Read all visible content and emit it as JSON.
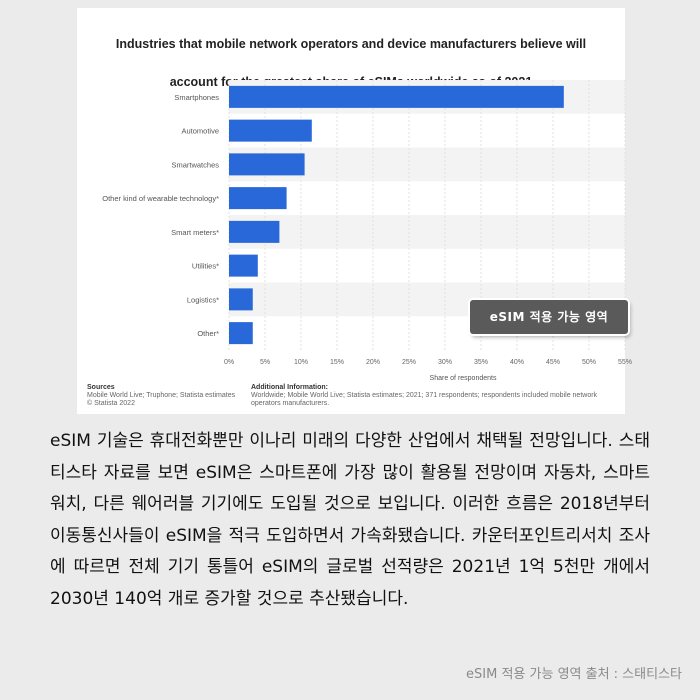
{
  "chart_data": {
    "type": "bar",
    "orientation": "horizontal",
    "title": "Industries that mobile network operators and device manufacturers believe will account for the greatest share of eSIMs worldwide as of 2021",
    "title_lines": [
      "Industries that mobile network operators and device manufacturers believe will",
      "account for the greatest share of eSIMs worldwide as of 2021"
    ],
    "categories": [
      "Smartphones",
      "Automotive",
      "Smartwatches",
      "Other kind of wearable technology*",
      "Smart meters*",
      "Utilities*",
      "Logistics*",
      "Other*"
    ],
    "values": [
      46.5,
      11.5,
      10.5,
      8,
      7,
      4,
      3.3,
      3.3
    ],
    "xlabel": "Share of respondents",
    "ylabel": "",
    "xlim": [
      0,
      55
    ],
    "xticks": [
      "0%",
      "5%",
      "10%",
      "15%",
      "20%",
      "25%",
      "30%",
      "35%",
      "40%",
      "45%",
      "50%",
      "55%"
    ],
    "grid": true,
    "bar_color": "#2968d9"
  },
  "footer": {
    "sources_title": "Sources",
    "sources_text": "Mobile World Live; Truphone; Statista estimates",
    "copyright": "© Statista 2022",
    "info_title": "Additional Information:",
    "info_text": "Worldwide; Mobile World Live; Statista estimates; 2021; 371 respondents; respondents included mobile network operators manufacturers."
  },
  "badge": "eSIM 적용 가능 영역",
  "body_text": "eSIM 기술은 휴대전화뿐만 이나리 미래의 다양한 산업에서 채택될 전망입니다. 스태티스타 자료를 보면 eSIM은 스마트폰에 가장 많이 활용될 전망이며 자동차, 스마트워치, 다른 웨어러블 기기에도 도입될 것으로 보입니다. 이러한 흐름은 2018년부터 이동통신사들이 eSIM을 적극 도입하면서 가속화됐습니다. 카운터포인트리서치 조사에 따르면 전체 기기 통틀어 eSIM의 글로벌 선적량은 2021년 1억 5천만 개에서 2030년 140억 개로 증가할 것으로 추산됐습니다.",
  "caption": "eSIM 적용 가능 영역 출처 : 스태티스타"
}
